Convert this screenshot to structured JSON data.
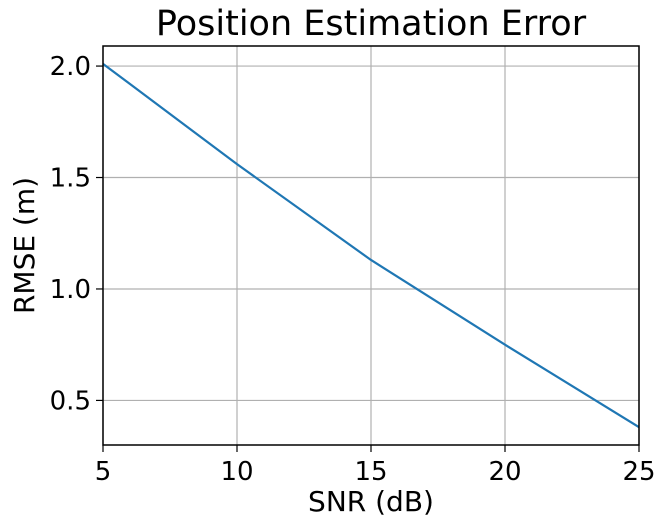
{
  "chart_data": {
    "type": "line",
    "title": "Position Estimation Error",
    "xlabel": "SNR (dB)",
    "ylabel": "RMSE (m)",
    "xlim": [
      5,
      25
    ],
    "ylim": [
      0.3,
      2.09
    ],
    "xticks": [
      5,
      10,
      15,
      20,
      25
    ],
    "xtick_labels": [
      "5",
      "10",
      "15",
      "20",
      "25"
    ],
    "yticks": [
      0.5,
      1.0,
      1.5,
      2.0
    ],
    "ytick_labels": [
      "0.5",
      "1.0",
      "1.5",
      "2.0"
    ],
    "grid": true,
    "legend": false,
    "series": [
      {
        "color": "#1f77b4",
        "x": [
          5,
          10,
          15,
          20,
          25
        ],
        "y": [
          2.01,
          1.56,
          1.13,
          0.75,
          0.38
        ]
      }
    ]
  }
}
